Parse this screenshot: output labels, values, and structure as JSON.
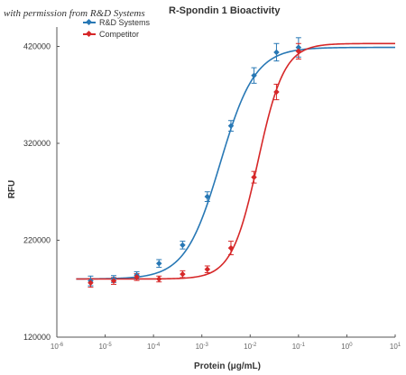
{
  "watermark": "with permission from R&D Systems",
  "chart_data": {
    "type": "line",
    "title": "R-Spondin 1 Bioactivity",
    "xlabel": "Protein (μg/mL)",
    "ylabel": "RFU",
    "x_scale": "log",
    "xlim": [
      1e-06,
      10
    ],
    "ylim": [
      120000,
      440000
    ],
    "x_ticks": [
      {
        "value": 1e-06,
        "base": "10",
        "exp": "-6"
      },
      {
        "value": 1e-05,
        "base": "10",
        "exp": "-5"
      },
      {
        "value": 0.0001,
        "base": "10",
        "exp": "-4"
      },
      {
        "value": 0.001,
        "base": "10",
        "exp": "-3"
      },
      {
        "value": 0.01,
        "base": "10",
        "exp": "-2"
      },
      {
        "value": 0.1,
        "base": "10",
        "exp": "-1"
      },
      {
        "value": 1,
        "base": "10",
        "exp": "0"
      },
      {
        "value": 10,
        "base": "10",
        "exp": "1"
      }
    ],
    "y_ticks": [
      {
        "value": 120000,
        "label": "120000"
      },
      {
        "value": 220000,
        "label": "220000"
      },
      {
        "value": 320000,
        "label": "320000"
      },
      {
        "value": 420000,
        "label": "420000"
      }
    ],
    "grid": false,
    "legend_position": "top-left",
    "series": [
      {
        "name": "R&D Systems",
        "color": "#2878b5",
        "x": [
          5e-06,
          1.5e-05,
          4.5e-05,
          0.00013,
          0.0004,
          0.0013,
          0.004,
          0.012,
          0.035,
          0.1
        ],
        "y": [
          178000,
          180000,
          184000,
          196000,
          215000,
          265000,
          338000,
          390000,
          414000,
          419000
        ],
        "err": [
          5000,
          3500,
          3500,
          4000,
          4000,
          5000,
          5500,
          8000,
          9000,
          10000
        ],
        "fit": {
          "bottom": 180000,
          "top": 419000,
          "ec50": 0.0024,
          "hill": 1.2
        }
      },
      {
        "name": "Competitor",
        "color": "#d62728",
        "x": [
          5e-06,
          1.5e-05,
          4.5e-05,
          0.00013,
          0.0004,
          0.0013,
          0.004,
          0.012,
          0.035,
          0.1
        ],
        "y": [
          176000,
          178000,
          182000,
          180000,
          185000,
          190000,
          212000,
          285000,
          373000,
          415000
        ],
        "err": [
          4500,
          3500,
          3500,
          3000,
          3500,
          3500,
          7000,
          6000,
          8000,
          8000
        ],
        "fit": {
          "bottom": 180000,
          "top": 423000,
          "ec50": 0.0145,
          "hill": 1.6
        }
      }
    ]
  }
}
